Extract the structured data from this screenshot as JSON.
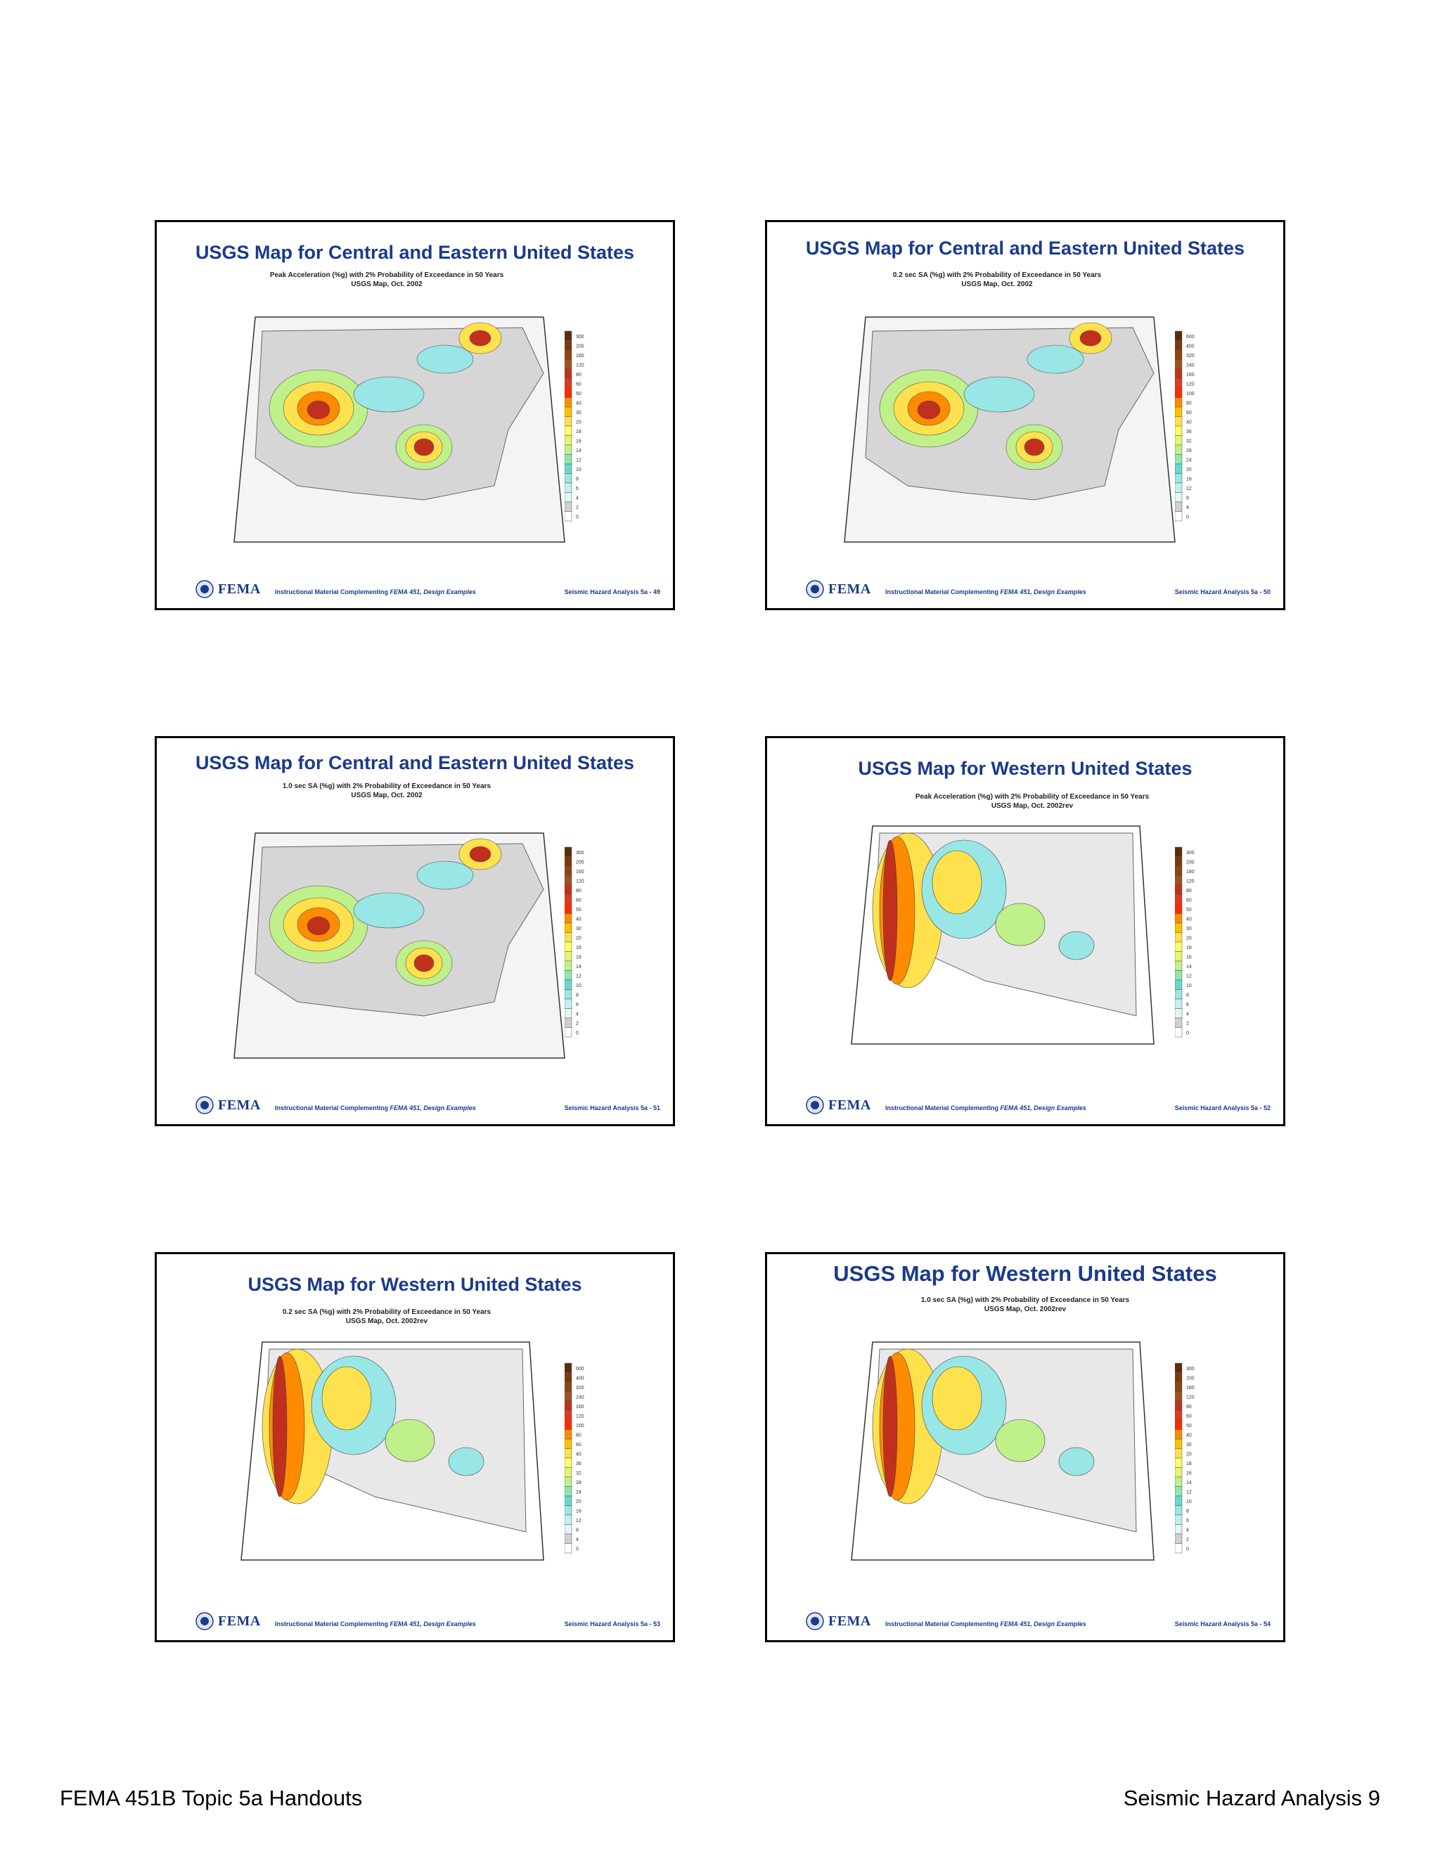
{
  "footer": {
    "left": "FEMA 451B Topic 5a Handouts",
    "right": "Seismic Hazard Analysis 9"
  },
  "slides": [
    {
      "title": "USGS Map for Central and Eastern United States",
      "subtitle1": "Peak Acceleration (%g) with 2% Probability of Exceedance in 50 Years",
      "subtitle2": "USGS Map, Oct. 2002",
      "region": "central-eastern",
      "legend": [
        "300",
        "200",
        "180",
        "120",
        "80",
        "60",
        "50",
        "40",
        "30",
        "20",
        "18",
        "16",
        "14",
        "12",
        "10",
        "8",
        "6",
        "4",
        "2",
        "0"
      ],
      "footer_logo": "FEMA",
      "footer_mid_prefix": "Instructional Material Complementing ",
      "footer_mid_italic": "FEMA 451, Design Examples",
      "footer_right": "Seismic Hazard Analysis 5a - 49"
    },
    {
      "title": "USGS Map for Central and Eastern United States",
      "subtitle1": "0.2 sec SA (%g) with 2% Probability of Exceedance in 50 Years",
      "subtitle2": "USGS Map, Oct. 2002",
      "region": "central-eastern",
      "legend": [
        "600",
        "400",
        "320",
        "240",
        "160",
        "120",
        "100",
        "80",
        "60",
        "40",
        "36",
        "32",
        "28",
        "24",
        "20",
        "16",
        "12",
        "8",
        "4",
        "0"
      ],
      "footer_logo": "FEMA",
      "footer_mid_prefix": "Instructional Material Complementing ",
      "footer_mid_italic": "FEMA 451, Design Examples",
      "footer_right": "Seismic Hazard Analysis 5a - 50"
    },
    {
      "title": "USGS Map for Central and Eastern United States",
      "subtitle1": "1.0 sec SA (%g) with 2% Probability of Exceedance in 50 Years",
      "subtitle2": "USGS Map, Oct. 2002",
      "region": "central-eastern",
      "legend": [
        "300",
        "200",
        "160",
        "120",
        "80",
        "60",
        "50",
        "40",
        "30",
        "20",
        "18",
        "16",
        "14",
        "12",
        "10",
        "8",
        "6",
        "4",
        "2",
        "0"
      ],
      "footer_logo": "FEMA",
      "footer_mid_prefix": "Instructional Material Complementing ",
      "footer_mid_italic": "FEMA 451, Design Examples",
      "footer_right": "Seismic Hazard Analysis 5a - 51"
    },
    {
      "title": "USGS Map for Western United States",
      "subtitle1": "Peak Acceleration (%g) with 2% Probability of Exceedance in 50 Years",
      "subtitle2": "USGS Map, Oct. 2002rev",
      "region": "western",
      "legend": [
        "300",
        "200",
        "180",
        "120",
        "80",
        "60",
        "50",
        "40",
        "30",
        "20",
        "18",
        "16",
        "14",
        "12",
        "10",
        "8",
        "6",
        "4",
        "2",
        "0"
      ],
      "footer_logo": "FEMA",
      "footer_mid_prefix": "Instructional Material Complementing ",
      "footer_mid_italic": "FEMA 451, Design Examples",
      "footer_right": "Seismic Hazard Analysis 5a - 52"
    },
    {
      "title": "USGS Map for Western United States",
      "subtitle1": "0.2 sec SA (%g) with 2% Probability of Exceedance in 50 Years",
      "subtitle2": "USGS Map, Oct. 2002rev",
      "region": "western",
      "legend": [
        "600",
        "400",
        "320",
        "240",
        "160",
        "120",
        "100",
        "80",
        "60",
        "40",
        "36",
        "32",
        "28",
        "24",
        "20",
        "16",
        "12",
        "8",
        "4",
        "0"
      ],
      "footer_logo": "FEMA",
      "footer_mid_prefix": "Instructional Material Complementing ",
      "footer_mid_italic": "FEMA 451, Design Examples",
      "footer_right": "Seismic Hazard Analysis 5a - 53"
    },
    {
      "title": "USGS Map for Western United States",
      "subtitle1": "1.0 sec SA (%g) with 2% Probability of Exceedance in 50 Years",
      "subtitle2": "USGS Map, Oct. 2002rev",
      "region": "western",
      "legend": [
        "300",
        "200",
        "160",
        "120",
        "80",
        "60",
        "50",
        "40",
        "30",
        "20",
        "18",
        "16",
        "14",
        "12",
        "10",
        "8",
        "6",
        "4",
        "2",
        "0"
      ],
      "footer_logo": "FEMA",
      "footer_mid_prefix": "Instructional Material Complementing ",
      "footer_mid_italic": "FEMA 451, Design Examples",
      "footer_right": "Seismic Hazard Analysis 5a - 54"
    }
  ],
  "colors": {
    "title": "#1a3a8c",
    "legend_scale": [
      "#5a2d0c",
      "#7a3a10",
      "#8b4513",
      "#a0521c",
      "#c0301c",
      "#e03a1a",
      "#ff2a00",
      "#ff8c00",
      "#ffc000",
      "#ffe14d",
      "#ffff66",
      "#e6f570",
      "#bff08a",
      "#8fe6b0",
      "#66d9cc",
      "#99e6e6",
      "#c2f0f0",
      "#e0f7f7",
      "#d0d0d0",
      "#ffffff"
    ]
  }
}
